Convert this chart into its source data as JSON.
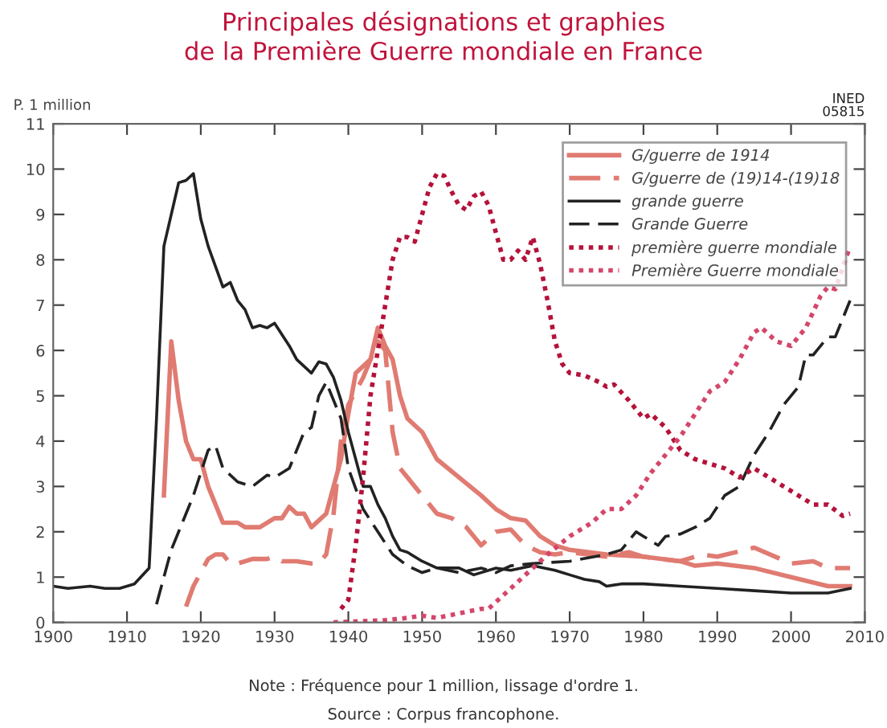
{
  "chart_data": {
    "type": "line",
    "title": "Principales désignations et graphies\nde la Première Guerre mondiale en France",
    "ylabel": "P. 1 million",
    "xlim": [
      1900,
      2010
    ],
    "xticks": [
      1900,
      1910,
      1920,
      1930,
      1940,
      1950,
      1960,
      1970,
      1980,
      1990,
      2000,
      2010
    ],
    "ylim": [
      0,
      11
    ],
    "yticks": [
      0,
      1,
      2,
      3,
      4,
      5,
      6,
      7,
      8,
      9,
      10,
      11
    ],
    "grid": false,
    "legend": "top right",
    "annotations": [
      "INED\n05815",
      "Note : Fréquence pour 1 million, lissage d'ordre 1.",
      "Source : Corpus francophone."
    ],
    "series": [
      {
        "name": "G/guerre de 1914",
        "color": "#e07b72",
        "line_style": "solid",
        "x": [
          1915,
          1916,
          1917,
          1918,
          1919,
          1920,
          1921,
          1923,
          1925,
          1926,
          1928,
          1930,
          1931,
          1932,
          1933,
          1934,
          1935,
          1937,
          1939,
          1940,
          1941,
          1943,
          1944,
          1945,
          1946,
          1947,
          1948,
          1950,
          1952,
          1955,
          1958,
          1960,
          1962,
          1964,
          1966,
          1968,
          1970,
          1975,
          1980,
          1985,
          1987,
          1990,
          1995,
          2000,
          2005,
          2008
        ],
        "values": [
          2.8,
          6.2,
          4.9,
          4.0,
          3.6,
          3.6,
          3.0,
          2.2,
          2.2,
          2.1,
          2.1,
          2.3,
          2.3,
          2.55,
          2.4,
          2.4,
          2.1,
          2.4,
          3.6,
          4.6,
          5.5,
          5.8,
          6.5,
          6.1,
          5.8,
          5.0,
          4.5,
          4.2,
          3.6,
          3.2,
          2.8,
          2.5,
          2.3,
          2.25,
          1.9,
          1.7,
          1.6,
          1.5,
          1.45,
          1.35,
          1.25,
          1.3,
          1.2,
          1.0,
          0.8,
          0.8
        ]
      },
      {
        "name": "G/guerre de (19)14-(19)18",
        "color": "#e07b72",
        "line_style": "dashed",
        "x": [
          1918,
          1919,
          1921,
          1922,
          1923,
          1924,
          1925,
          1927,
          1929,
          1930,
          1931,
          1933,
          1935,
          1936,
          1937,
          1938,
          1939,
          1940,
          1942,
          1944,
          1945,
          1946,
          1947,
          1948,
          1950,
          1952,
          1954,
          1956,
          1958,
          1960,
          1962,
          1964,
          1966,
          1968,
          1970,
          1975,
          1978,
          1980,
          1985,
          1988,
          1990,
          1995,
          2000,
          2003,
          2005,
          2008
        ],
        "values": [
          0.35,
          0.8,
          1.4,
          1.5,
          1.5,
          1.3,
          1.3,
          1.4,
          1.4,
          1.45,
          1.35,
          1.35,
          1.3,
          1.3,
          1.5,
          2.4,
          4.0,
          4.8,
          5.4,
          6.2,
          6.0,
          4.2,
          3.4,
          3.2,
          2.8,
          2.4,
          2.3,
          2.1,
          1.7,
          2.0,
          2.05,
          1.7,
          1.55,
          1.5,
          1.55,
          1.45,
          1.55,
          1.45,
          1.35,
          1.5,
          1.45,
          1.65,
          1.3,
          1.35,
          1.2,
          1.2
        ]
      },
      {
        "name": "grande guerre",
        "color": "#222222",
        "line_style": "solid",
        "x": [
          1900,
          1902,
          1905,
          1907,
          1909,
          1911,
          1913,
          1914,
          1915,
          1917,
          1918,
          1919,
          1920,
          1921,
          1923,
          1924,
          1925,
          1926,
          1927,
          1928,
          1929,
          1930,
          1932,
          1933,
          1935,
          1936,
          1937,
          1938,
          1939,
          1940,
          1942,
          1943,
          1944,
          1945,
          1946,
          1947,
          1948,
          1950,
          1952,
          1955,
          1957,
          1960,
          1962,
          1965,
          1968,
          1970,
          1972,
          1974,
          1975,
          1977,
          1980,
          1985,
          1990,
          1995,
          2000,
          2005,
          2008
        ],
        "values": [
          0.8,
          0.75,
          0.8,
          0.75,
          0.75,
          0.85,
          1.2,
          4.5,
          8.3,
          9.7,
          9.75,
          9.9,
          8.9,
          8.3,
          7.4,
          7.5,
          7.1,
          6.9,
          6.5,
          6.55,
          6.5,
          6.6,
          6.1,
          5.8,
          5.5,
          5.75,
          5.7,
          5.4,
          4.9,
          4.2,
          3.0,
          3.0,
          2.6,
          2.3,
          1.9,
          1.6,
          1.55,
          1.35,
          1.2,
          1.2,
          1.05,
          1.2,
          1.15,
          1.25,
          1.15,
          1.05,
          0.95,
          0.9,
          0.8,
          0.85,
          0.85,
          0.8,
          0.75,
          0.7,
          0.65,
          0.65,
          0.75
        ]
      },
      {
        "name": "Grande Guerre",
        "color": "#222222",
        "line_style": "dashed",
        "x": [
          1914,
          1916,
          1918,
          1919,
          1920,
          1921,
          1922,
          1923,
          1925,
          1927,
          1929,
          1930,
          1932,
          1934,
          1935,
          1936,
          1937,
          1939,
          1940,
          1942,
          1944,
          1946,
          1948,
          1950,
          1952,
          1955,
          1958,
          1960,
          1962,
          1965,
          1970,
          1975,
          1977,
          1978,
          1979,
          1980,
          1982,
          1983,
          1985,
          1987,
          1989,
          1991,
          1993,
          1995,
          1997,
          1999,
          2001,
          2002,
          2003,
          2005,
          2006,
          2008
        ],
        "values": [
          0.4,
          1.6,
          2.4,
          2.8,
          3.3,
          3.8,
          3.9,
          3.4,
          3.1,
          3.0,
          3.25,
          3.2,
          3.4,
          4.2,
          4.3,
          5.0,
          5.3,
          4.5,
          3.4,
          2.5,
          2.0,
          1.5,
          1.25,
          1.1,
          1.2,
          1.1,
          1.2,
          1.1,
          1.25,
          1.3,
          1.35,
          1.5,
          1.6,
          1.8,
          2.0,
          1.9,
          1.7,
          1.9,
          1.95,
          2.1,
          2.3,
          2.8,
          3.0,
          3.7,
          4.2,
          4.8,
          5.2,
          5.9,
          5.9,
          6.3,
          6.3,
          7.1
        ]
      },
      {
        "name": "première guerre mondiale",
        "color": "#b5123a",
        "line_style": "dotted",
        "x": [
          1939,
          1940,
          1941,
          1942,
          1943,
          1944,
          1945,
          1946,
          1947,
          1948,
          1949,
          1950,
          1951,
          1952,
          1953,
          1954,
          1955,
          1956,
          1957,
          1958,
          1959,
          1960,
          1961,
          1962,
          1963,
          1964,
          1965,
          1966,
          1967,
          1968,
          1969,
          1970,
          1972,
          1974,
          1975,
          1976,
          1978,
          1980,
          1981,
          1983,
          1985,
          1987,
          1989,
          1991,
          1993,
          1995,
          1997,
          1999,
          2001,
          2003,
          2005,
          2007,
          2008
        ],
        "values": [
          0.3,
          0.5,
          1.7,
          3.2,
          5.0,
          6.0,
          7.0,
          8.0,
          8.5,
          8.5,
          8.4,
          9.0,
          9.6,
          9.9,
          9.85,
          9.5,
          9.2,
          9.1,
          9.4,
          9.5,
          9.2,
          8.6,
          8.0,
          8.0,
          8.2,
          8.0,
          8.5,
          7.9,
          7.1,
          6.2,
          5.7,
          5.5,
          5.45,
          5.3,
          5.2,
          5.25,
          4.9,
          4.5,
          4.6,
          4.3,
          3.8,
          3.6,
          3.5,
          3.4,
          3.2,
          3.4,
          3.2,
          3.0,
          2.8,
          2.6,
          2.6,
          2.35,
          2.4
        ]
      },
      {
        "name": "Première Guerre mondiale",
        "color": "#d4466a",
        "line_style": "dotted",
        "x": [
          1938,
          1945,
          1948,
          1950,
          1952,
          1955,
          1958,
          1959,
          1961,
          1963,
          1965,
          1967,
          1970,
          1973,
          1975,
          1977,
          1979,
          1981,
          1983,
          1985,
          1987,
          1989,
          1991,
          1993,
          1995,
          1996,
          1998,
          2000,
          2002,
          2004,
          2005,
          2006,
          2008
        ],
        "values": [
          0,
          0.05,
          0.1,
          0.15,
          0.1,
          0.2,
          0.3,
          0.3,
          0.6,
          0.9,
          1.2,
          1.5,
          1.9,
          2.2,
          2.5,
          2.5,
          2.8,
          3.3,
          3.7,
          4.1,
          4.6,
          5.1,
          5.3,
          5.8,
          6.4,
          6.5,
          6.2,
          6.1,
          6.5,
          7.2,
          7.4,
          7.35,
          8.3
        ]
      }
    ]
  }
}
